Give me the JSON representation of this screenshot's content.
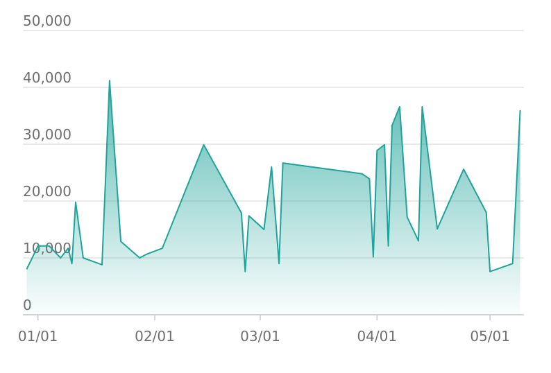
{
  "chart_data": {
    "type": "area",
    "x": [
      "12/29",
      "01/01",
      "01/04",
      "01/07",
      "01/09",
      "01/10",
      "01/11",
      "01/13",
      "01/18",
      "01/20",
      "01/23",
      "01/28",
      "01/30",
      "02/03",
      "02/14",
      "02/24",
      "02/25",
      "02/26",
      "03/02",
      "03/04",
      "03/06",
      "03/07",
      "03/28",
      "03/30",
      "03/31",
      "04/01",
      "04/03",
      "04/04",
      "04/05",
      "04/07",
      "04/09",
      "04/12",
      "04/13",
      "04/17",
      "04/24",
      "04/30",
      "05/01",
      "05/07",
      "05/09"
    ],
    "values": [
      8000,
      12100,
      12100,
      10000,
      11700,
      9000,
      19800,
      10000,
      8800,
      41200,
      12900,
      10000,
      10700,
      11700,
      29900,
      17900,
      7600,
      17400,
      15000,
      26000,
      9000,
      26700,
      24800,
      23900,
      10200,
      28900,
      29900,
      12100,
      33300,
      36600,
      17200,
      13000,
      36600,
      15100,
      25600,
      18000,
      7600,
      9000,
      36000
    ],
    "color": "#1fa39a",
    "xlim": [
      "12/28",
      "05/10"
    ],
    "xticks": [
      "01/01",
      "02/01",
      "03/01",
      "04/01",
      "05/01"
    ],
    "ylim": [
      0,
      50000
    ],
    "yticks": [
      0,
      {
        "value": 10000,
        "label": "10,000"
      },
      {
        "value": 20000,
        "label": "20,000"
      },
      {
        "value": 30000,
        "label": "30,000"
      },
      {
        "value": 40000,
        "label": "40,000"
      },
      {
        "value": 50000,
        "label": "50,000"
      }
    ],
    "grid": true
  }
}
